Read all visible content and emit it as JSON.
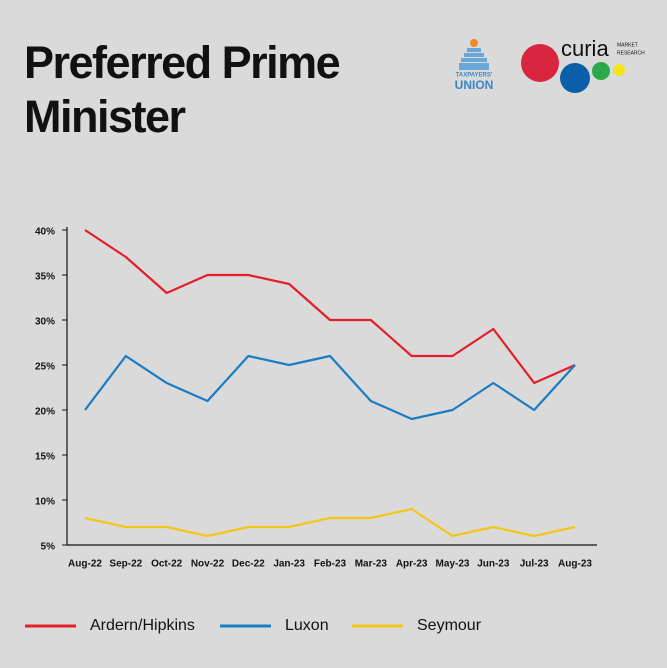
{
  "chart_data": {
    "type": "line",
    "title": "Preferred Prime Minister",
    "categories": [
      "Aug-22",
      "Sep-22",
      "Oct-22",
      "Nov-22",
      "Dec-22",
      "Jan-23",
      "Feb-23",
      "Mar-23",
      "Apr-23",
      "May-23",
      "Jun-23",
      "Jul-23",
      "Aug-23"
    ],
    "series": [
      {
        "name": "Ardern/Hipkins",
        "color": "#e3202a",
        "values": [
          40,
          37,
          33,
          35,
          35,
          34,
          30,
          30,
          26,
          26,
          29,
          23,
          25
        ]
      },
      {
        "name": "Luxon",
        "color": "#1a7dc4",
        "values": [
          20,
          26,
          23,
          21,
          26,
          25,
          26,
          21,
          19,
          20,
          23,
          20,
          25
        ]
      },
      {
        "name": "Seymour",
        "color": "#f5c518",
        "values": [
          8,
          7,
          7,
          6,
          7,
          7,
          8,
          8,
          9,
          6,
          7,
          6,
          7
        ]
      }
    ],
    "ylim": [
      5,
      40
    ],
    "yticks": [
      {
        "value": 5,
        "label": "5%"
      },
      {
        "value": 10,
        "label": "10%"
      },
      {
        "value": 15,
        "label": "15%"
      },
      {
        "value": 20,
        "label": "20%"
      },
      {
        "value": 25,
        "label": "25%"
      },
      {
        "value": 30,
        "label": "30%"
      },
      {
        "value": 35,
        "label": "35%"
      },
      {
        "value": 40,
        "label": "40%"
      }
    ],
    "grid": false,
    "legend": "bottom"
  },
  "logos": {
    "taxpayers": [
      "TAXPAYERS'",
      "UNION"
    ],
    "curia": {
      "name": "curia",
      "tagline": [
        "MARKET",
        "RESEARCH"
      ]
    }
  }
}
